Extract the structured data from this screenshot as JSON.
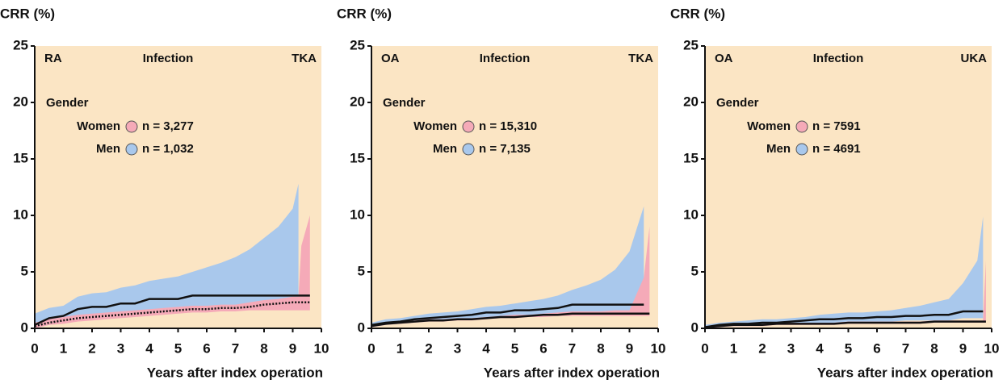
{
  "chart_data": [
    {
      "type": "line",
      "ylabel": "CRR (%)",
      "xlabel": "Years after index operation",
      "disease": "RA",
      "disease_color": "#e8202a",
      "outcome": "Infection",
      "implant": "TKA",
      "legend_title": "Gender",
      "background": "#fbe5c4",
      "xlim": [
        0,
        10
      ],
      "ylim": [
        0,
        25
      ],
      "xticks": [
        0,
        1,
        2,
        3,
        4,
        5,
        6,
        7,
        8,
        9,
        10
      ],
      "yticks": [
        0,
        5,
        10,
        15,
        20,
        25
      ],
      "x": [
        0,
        0.5,
        1,
        1.5,
        2,
        2.5,
        3,
        3.5,
        4,
        4.5,
        5,
        5.5,
        6,
        6.5,
        7,
        7.5,
        8,
        8.5,
        9,
        9.2,
        9.3,
        9.6
      ],
      "series": [
        {
          "name": "Men",
          "label": "n = 1,032",
          "color": "#a9c8ec",
          "line_style": "solid",
          "values": [
            0.3,
            0.9,
            1.1,
            1.7,
            1.9,
            1.9,
            2.2,
            2.2,
            2.6,
            2.6,
            2.6,
            2.9,
            2.9,
            2.9,
            2.9,
            2.9,
            2.9,
            2.9,
            2.9,
            2.9,
            2.9,
            2.9
          ],
          "upper": [
            1.3,
            1.8,
            2.0,
            2.8,
            3.1,
            3.2,
            3.6,
            3.8,
            4.2,
            4.4,
            4.6,
            5.0,
            5.4,
            5.8,
            6.3,
            7.0,
            8.0,
            9.0,
            10.6,
            12.8,
            null,
            null
          ],
          "lower": [
            0,
            0.3,
            0.5,
            0.8,
            1.0,
            1.1,
            1.2,
            1.3,
            1.5,
            1.5,
            1.6,
            1.7,
            1.7,
            1.7,
            1.7,
            1.7,
            1.7,
            1.7,
            1.7,
            1.7,
            null,
            null
          ]
        },
        {
          "name": "Women",
          "label": "n = 3,277",
          "color": "#f5aab8",
          "line_style": "dotted",
          "values": [
            0.2,
            0.5,
            0.7,
            0.9,
            1.0,
            1.1,
            1.2,
            1.3,
            1.4,
            1.5,
            1.6,
            1.7,
            1.7,
            1.8,
            1.8,
            1.9,
            2.1,
            2.2,
            2.3,
            2.3,
            2.3,
            2.3
          ],
          "upper": [
            0.5,
            0.8,
            1.0,
            1.2,
            1.3,
            1.4,
            1.5,
            1.6,
            1.7,
            1.8,
            1.9,
            2.0,
            2.0,
            2.1,
            2.1,
            2.3,
            2.5,
            2.6,
            2.8,
            2.8,
            7.3,
            10.0
          ],
          "lower": [
            0,
            0.3,
            0.4,
            0.6,
            0.7,
            0.8,
            0.9,
            1.0,
            1.1,
            1.2,
            1.3,
            1.4,
            1.4,
            1.5,
            1.5,
            1.6,
            1.6,
            1.6,
            1.6,
            1.6,
            1.6,
            1.6
          ]
        }
      ]
    },
    {
      "type": "line",
      "ylabel": "CRR (%)",
      "xlabel": "Years after index operation",
      "disease": "OA",
      "disease_color": "#1a78c2",
      "outcome": "Infection",
      "implant": "TKA",
      "legend_title": "Gender",
      "background": "#fbe5c4",
      "xlim": [
        0,
        10
      ],
      "ylim": [
        0,
        25
      ],
      "xticks": [
        0,
        1,
        2,
        3,
        4,
        5,
        6,
        7,
        8,
        9,
        10
      ],
      "yticks": [
        0,
        5,
        10,
        15,
        20,
        25
      ],
      "x": [
        0,
        0.5,
        1,
        1.5,
        2,
        2.5,
        3,
        3.5,
        4,
        4.5,
        5,
        5.5,
        6,
        6.5,
        7,
        7.5,
        8,
        8.5,
        9,
        9.5,
        9.7
      ],
      "series": [
        {
          "name": "Men",
          "label": "n = 7,135",
          "color": "#a9c8ec",
          "line_style": "solid",
          "values": [
            0.3,
            0.5,
            0.6,
            0.8,
            0.9,
            1.0,
            1.1,
            1.2,
            1.4,
            1.4,
            1.6,
            1.6,
            1.7,
            1.8,
            2.1,
            2.1,
            2.1,
            2.1,
            2.1,
            2.1,
            null
          ],
          "upper": [
            0.5,
            0.8,
            0.9,
            1.1,
            1.3,
            1.4,
            1.5,
            1.7,
            1.9,
            2.0,
            2.2,
            2.4,
            2.6,
            2.9,
            3.4,
            3.8,
            4.3,
            5.2,
            6.8,
            10.8,
            null
          ],
          "lower": [
            0.1,
            0.3,
            0.4,
            0.5,
            0.6,
            0.7,
            0.8,
            0.9,
            1.0,
            1.0,
            1.1,
            1.1,
            1.2,
            1.2,
            1.3,
            1.3,
            1.3,
            1.3,
            1.3,
            1.3,
            null
          ]
        },
        {
          "name": "Women",
          "label": "n = 15,310",
          "color": "#f5aab8",
          "line_style": "solid",
          "values": [
            0.2,
            0.4,
            0.5,
            0.6,
            0.7,
            0.7,
            0.8,
            0.8,
            0.9,
            1.0,
            1.0,
            1.1,
            1.2,
            1.2,
            1.3,
            1.3,
            1.3,
            1.3,
            1.3,
            1.3,
            1.3
          ],
          "upper": [
            0.3,
            0.5,
            0.6,
            0.7,
            0.8,
            0.8,
            0.9,
            0.9,
            1.0,
            1.1,
            1.2,
            1.2,
            1.3,
            1.4,
            1.5,
            1.5,
            1.5,
            1.6,
            1.6,
            4.5,
            9.0
          ],
          "lower": [
            0.1,
            0.3,
            0.4,
            0.5,
            0.6,
            0.6,
            0.7,
            0.7,
            0.8,
            0.9,
            0.9,
            1.0,
            1.0,
            1.1,
            1.1,
            1.1,
            1.1,
            1.1,
            1.1,
            1.1,
            1.1
          ]
        }
      ]
    },
    {
      "type": "line",
      "ylabel": "CRR (%)",
      "xlabel": "Years after index operation",
      "disease": "OA",
      "disease_color": "#1a78c2",
      "outcome": "Infection",
      "implant": "UKA",
      "legend_title": "Gender",
      "background": "#fbe5c4",
      "xlim": [
        0,
        10
      ],
      "ylim": [
        0,
        25
      ],
      "xticks": [
        0,
        1,
        2,
        3,
        4,
        5,
        6,
        7,
        8,
        9,
        10
      ],
      "yticks": [
        0,
        5,
        10,
        15,
        20,
        25
      ],
      "x": [
        0,
        0.5,
        1,
        1.5,
        2,
        2.5,
        3,
        3.5,
        4,
        4.5,
        5,
        5.5,
        6,
        6.5,
        7,
        7.5,
        8,
        8.5,
        9,
        9.5,
        9.7,
        9.8
      ],
      "series": [
        {
          "name": "Men",
          "label": "n = 4691",
          "color": "#a9c8ec",
          "line_style": "solid",
          "values": [
            0.1,
            0.3,
            0.4,
            0.4,
            0.5,
            0.5,
            0.6,
            0.7,
            0.8,
            0.8,
            0.9,
            0.9,
            1.0,
            1.0,
            1.1,
            1.1,
            1.2,
            1.2,
            1.5,
            1.5,
            1.5,
            null
          ],
          "upper": [
            0.3,
            0.5,
            0.6,
            0.7,
            0.8,
            0.8,
            0.9,
            1.0,
            1.2,
            1.3,
            1.4,
            1.4,
            1.5,
            1.6,
            1.8,
            2.0,
            2.3,
            2.6,
            4.0,
            6.0,
            9.9,
            null
          ],
          "lower": [
            0,
            0.1,
            0.2,
            0.2,
            0.3,
            0.3,
            0.4,
            0.4,
            0.5,
            0.5,
            0.6,
            0.6,
            0.6,
            0.6,
            0.7,
            0.7,
            0.7,
            0.7,
            0.9,
            0.9,
            0.9,
            null
          ]
        },
        {
          "name": "Women",
          "label": "n = 7591",
          "color": "#f5aab8",
          "line_style": "solid",
          "values": [
            0.1,
            0.2,
            0.3,
            0.3,
            0.3,
            0.4,
            0.4,
            0.4,
            0.4,
            0.4,
            0.5,
            0.5,
            0.5,
            0.5,
            0.5,
            0.5,
            0.6,
            0.6,
            0.6,
            0.6,
            0.6,
            0.6
          ],
          "upper": [
            0.2,
            0.3,
            0.4,
            0.4,
            0.4,
            0.5,
            0.5,
            0.5,
            0.5,
            0.5,
            0.6,
            0.6,
            0.6,
            0.6,
            0.6,
            0.6,
            0.7,
            0.7,
            0.7,
            0.7,
            0.7,
            6.0
          ],
          "lower": [
            0,
            0.1,
            0.2,
            0.2,
            0.2,
            0.3,
            0.3,
            0.3,
            0.3,
            0.3,
            0.4,
            0.4,
            0.4,
            0.4,
            0.4,
            0.4,
            0.5,
            0.5,
            0.5,
            0.5,
            0.5,
            0.5
          ]
        }
      ]
    }
  ]
}
